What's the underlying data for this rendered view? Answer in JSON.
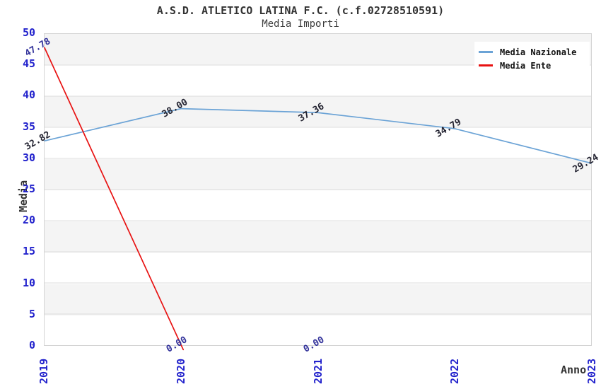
{
  "header": {
    "title": "A.S.D. ATLETICO LATINA F.C. (c.f.02728510591)",
    "subtitle": "Media Importi"
  },
  "axes": {
    "y_title": "Media",
    "x_title": "Anno",
    "y_ticks": [
      "0",
      "5",
      "10",
      "15",
      "20",
      "25",
      "30",
      "35",
      "40",
      "45",
      "50"
    ],
    "x_ticks": [
      "2019",
      "2020",
      "2021",
      "2022",
      "2023"
    ]
  },
  "colors": {
    "tick_label": "#2222cc",
    "grid_line": "#dcdcdc",
    "plot_border": "#d4d4d4",
    "band_gray": "#f4f4f4",
    "band_white": "#ffffff",
    "title": "#333333",
    "subtitle": "#3c3c3c",
    "axis_title": "#333333",
    "legend_text": "#111111",
    "legend_background": "#ffffff"
  },
  "chart_data": {
    "type": "line",
    "title": "A.S.D. ATLETICO LATINA F.C. (c.f.02728510591)",
    "subtitle": "Media Importi",
    "x": [
      "2019",
      "2020",
      "2021",
      "2022",
      "2023"
    ],
    "series": [
      {
        "name": "Media Nazionale",
        "color": "#6ba3d6",
        "label_color": "#222230",
        "values": [
          32.82,
          38.0,
          37.36,
          34.79,
          29.24
        ],
        "point_labels": [
          "32.82",
          "38.00",
          "37.36",
          "34.79",
          "29.24"
        ]
      },
      {
        "name": "Media Ente",
        "color": "#e81212",
        "label_color": "#33339b",
        "values": [
          47.78,
          0.0,
          0.0,
          null,
          null
        ],
        "point_labels": [
          "47.78",
          "0.00",
          "0.00",
          null,
          null
        ]
      }
    ],
    "xlabel": "Anno",
    "ylabel": "Media",
    "ylim": [
      0,
      50
    ],
    "y_tick_step": 5,
    "grid": true,
    "background_bands": true,
    "legend_position": "top-right"
  }
}
